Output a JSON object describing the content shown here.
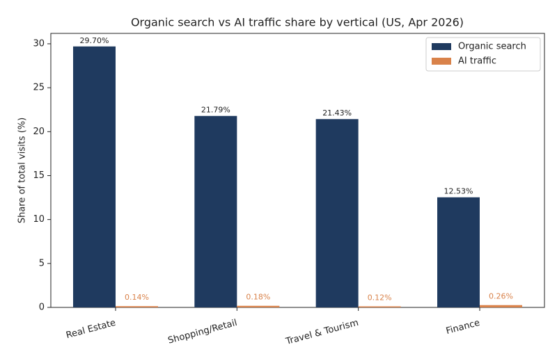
{
  "chart_data": {
    "type": "bar",
    "title": "Organic search vs AI traffic share by vertical (US, Apr 2026)",
    "y_label": "Share of total visits (%)",
    "categories": [
      "Real Estate",
      "Shopping/Retail",
      "Travel & Tourism",
      "Finance"
    ],
    "series": [
      {
        "name": "Organic search",
        "color": "#1f3a5f",
        "values": [
          29.7,
          21.79,
          21.43,
          12.53
        ],
        "value_labels": [
          "29.70%",
          "21.79%",
          "21.43%",
          "12.53%"
        ],
        "label_color": "#222222"
      },
      {
        "name": "AI traffic",
        "color": "#d9824a",
        "values": [
          0.14,
          0.18,
          0.12,
          0.26
        ],
        "value_labels": [
          "0.14%",
          "0.18%",
          "0.12%",
          "0.26%"
        ],
        "label_color": "#d9824a"
      }
    ],
    "ylim": [
      0,
      31.185
    ],
    "yticks": [
      0,
      5,
      10,
      15,
      20,
      25,
      30
    ],
    "legend": "upper right",
    "grid": false
  }
}
